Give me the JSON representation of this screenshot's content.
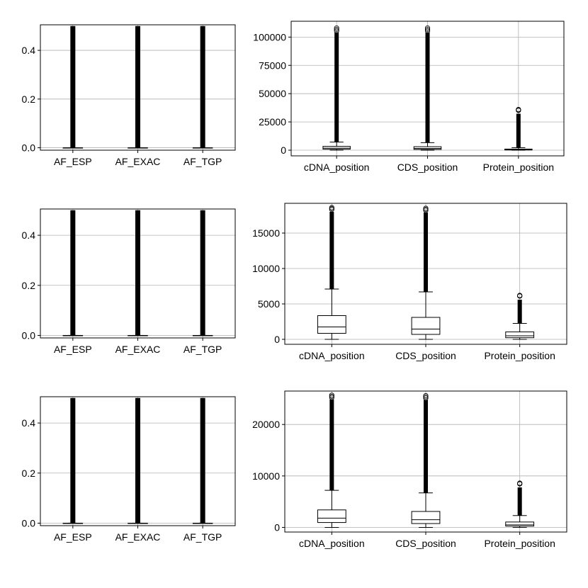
{
  "chart_data": [
    {
      "type": "box",
      "categories": [
        "AF_ESP",
        "AF_EXAC",
        "AF_TGP"
      ],
      "ylim": [
        -0.01,
        0.505
      ],
      "yticks": [
        0.0,
        0.2,
        0.4
      ],
      "yticklabels": [
        "0.0",
        "0.2",
        "0.4"
      ],
      "grid": true,
      "series": [
        {
          "category": "AF_ESP",
          "q1": 0.0,
          "median": 0.0,
          "q3": 0.0,
          "whisker_low": 0.0,
          "whisker_high": 0.0,
          "outliers_min": 0.0,
          "outliers_max": 0.5
        },
        {
          "category": "AF_EXAC",
          "q1": 0.0,
          "median": 0.0,
          "q3": 0.0,
          "whisker_low": 0.0,
          "whisker_high": 0.0,
          "outliers_min": 0.0,
          "outliers_max": 0.5
        },
        {
          "category": "AF_TGP",
          "q1": 0.0,
          "median": 0.0,
          "q3": 0.0,
          "whisker_low": 0.0,
          "whisker_high": 0.0,
          "outliers_min": 0.0,
          "outliers_max": 0.5
        }
      ]
    },
    {
      "type": "box",
      "categories": [
        "cDNA_position",
        "CDS_position",
        "Protein_position"
      ],
      "ylim": [
        -5000,
        114000
      ],
      "yticks": [
        0,
        25000,
        50000,
        75000,
        100000
      ],
      "yticklabels": [
        "0",
        "25000",
        "50000",
        "75000",
        "100000"
      ],
      "grid": true,
      "series": [
        {
          "category": "cDNA_position",
          "q1": 900,
          "median": 1800,
          "q3": 3400,
          "whisker_low": 1,
          "whisker_high": 7200,
          "outliers_min": 7200,
          "outliers_max": 108000
        },
        {
          "category": "CDS_position",
          "q1": 700,
          "median": 1500,
          "q3": 3100,
          "whisker_low": 1,
          "whisker_high": 6700,
          "outliers_min": 6700,
          "outliers_max": 108000
        },
        {
          "category": "Protein_position",
          "q1": 200,
          "median": 500,
          "q3": 1000,
          "whisker_low": 1,
          "whisker_high": 2200,
          "outliers_min": 2200,
          "outliers_max": 36000
        }
      ]
    },
    {
      "type": "box",
      "categories": [
        "AF_ESP",
        "AF_EXAC",
        "AF_TGP"
      ],
      "ylim": [
        -0.01,
        0.505
      ],
      "yticks": [
        0.0,
        0.2,
        0.4
      ],
      "yticklabels": [
        "0.0",
        "0.2",
        "0.4"
      ],
      "grid": true,
      "series": [
        {
          "category": "AF_ESP",
          "q1": 0.0,
          "median": 0.0,
          "q3": 0.0,
          "whisker_low": 0.0,
          "whisker_high": 0.0,
          "outliers_min": 0.0,
          "outliers_max": 0.5
        },
        {
          "category": "AF_EXAC",
          "q1": 0.0,
          "median": 0.0,
          "q3": 0.0,
          "whisker_low": 0.0,
          "whisker_high": 0.0,
          "outliers_min": 0.0,
          "outliers_max": 0.5
        },
        {
          "category": "AF_TGP",
          "q1": 0.0,
          "median": 0.0,
          "q3": 0.0,
          "whisker_low": 0.0,
          "whisker_high": 0.0,
          "outliers_min": 0.0,
          "outliers_max": 0.5
        }
      ]
    },
    {
      "type": "box",
      "categories": [
        "cDNA_position",
        "CDS_position",
        "Protein_position"
      ],
      "ylim": [
        -700,
        19200
      ],
      "yticks": [
        0,
        5000,
        10000,
        15000
      ],
      "yticklabels": [
        "0",
        "5000",
        "10000",
        "15000"
      ],
      "grid": true,
      "series": [
        {
          "category": "cDNA_position",
          "q1": 850,
          "median": 1750,
          "q3": 3350,
          "whisker_low": 1,
          "whisker_high": 7100,
          "outliers_min": 7100,
          "outliers_max": 18600
        },
        {
          "category": "CDS_position",
          "q1": 700,
          "median": 1450,
          "q3": 3100,
          "whisker_low": 1,
          "whisker_high": 6700,
          "outliers_min": 6700,
          "outliers_max": 18500
        },
        {
          "category": "Protein_position",
          "q1": 230,
          "median": 500,
          "q3": 1050,
          "whisker_low": 1,
          "whisker_high": 2250,
          "outliers_min": 2250,
          "outliers_max": 6200
        }
      ]
    },
    {
      "type": "box",
      "categories": [
        "AF_ESP",
        "AF_EXAC",
        "AF_TGP"
      ],
      "ylim": [
        -0.01,
        0.505
      ],
      "yticks": [
        0.0,
        0.2,
        0.4
      ],
      "yticklabels": [
        "0.0",
        "0.2",
        "0.4"
      ],
      "grid": true,
      "series": [
        {
          "category": "AF_ESP",
          "q1": 0.0,
          "median": 0.0,
          "q3": 0.0,
          "whisker_low": 0.0,
          "whisker_high": 0.0,
          "outliers_min": 0.0,
          "outliers_max": 0.5
        },
        {
          "category": "AF_EXAC",
          "q1": 0.0,
          "median": 0.0,
          "q3": 0.0,
          "whisker_low": 0.0,
          "whisker_high": 0.0,
          "outliers_min": 0.0,
          "outliers_max": 0.5
        },
        {
          "category": "AF_TGP",
          "q1": 0.0,
          "median": 0.0,
          "q3": 0.0,
          "whisker_low": 0.0,
          "whisker_high": 0.0,
          "outliers_min": 0.0,
          "outliers_max": 0.5
        }
      ]
    },
    {
      "type": "box",
      "categories": [
        "cDNA_position",
        "CDS_position",
        "Protein_position"
      ],
      "ylim": [
        -900,
        26500
      ],
      "yticks": [
        0,
        10000,
        20000
      ],
      "yticklabels": [
        "0",
        "10000",
        "20000"
      ],
      "grid": true,
      "series": [
        {
          "category": "cDNA_position",
          "q1": 950,
          "median": 1800,
          "q3": 3400,
          "whisker_low": 1,
          "whisker_high": 7200,
          "outliers_min": 7200,
          "outliers_max": 25700
        },
        {
          "category": "CDS_position",
          "q1": 750,
          "median": 1500,
          "q3": 3100,
          "whisker_low": 1,
          "whisker_high": 6700,
          "outliers_min": 6700,
          "outliers_max": 25600
        },
        {
          "category": "Protein_position",
          "q1": 250,
          "median": 500,
          "q3": 1050,
          "whisker_low": 1,
          "whisker_high": 2300,
          "outliers_min": 2300,
          "outliers_max": 8600
        }
      ]
    }
  ]
}
